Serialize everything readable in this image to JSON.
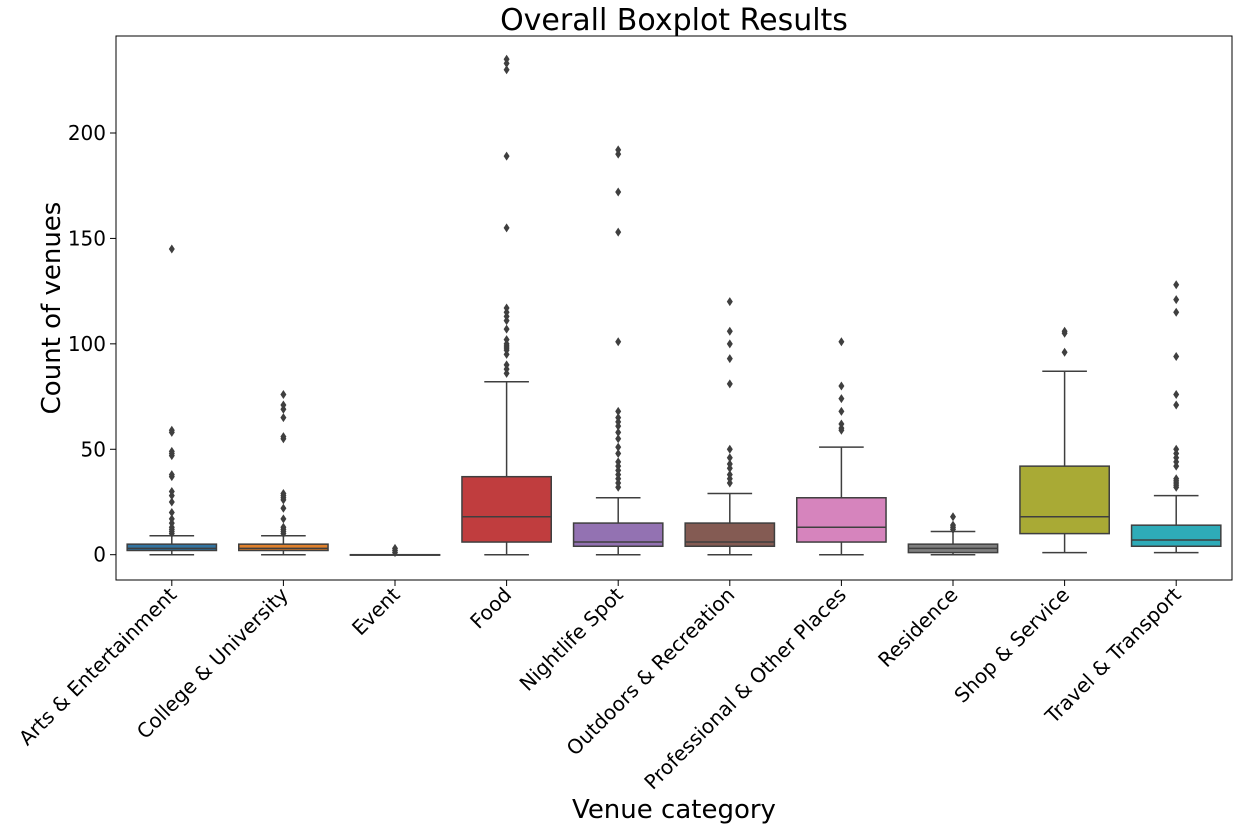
{
  "chart_data": {
    "type": "box",
    "title": "Overall Boxplot Results",
    "xlabel": "Venue category",
    "ylabel": "Count of venues",
    "ylim": [
      -12,
      246
    ],
    "yticks": [
      0,
      50,
      100,
      150,
      200
    ],
    "grid": false,
    "legend": "none",
    "categories": [
      "Arts & Entertainment",
      "College & University",
      "Event",
      "Food",
      "Nightlife Spot",
      "Outdoors & Recreation",
      "Professional & Other Places",
      "Residence",
      "Shop & Service",
      "Travel & Transport"
    ],
    "boxes": [
      {
        "category": "Arts & Entertainment",
        "color": "#3274a1",
        "whisker_low": 0,
        "q1": 2,
        "median": 3,
        "q3": 5,
        "whisker_high": 9,
        "outliers": [
          10,
          11,
          12,
          13,
          15,
          17,
          20,
          25,
          28,
          30,
          37,
          38,
          47,
          48,
          49,
          58,
          59,
          145
        ]
      },
      {
        "category": "College & University",
        "color": "#e1812c",
        "whisker_low": 0,
        "q1": 2,
        "median": 3,
        "q3": 5,
        "whisker_high": 9,
        "outliers": [
          10,
          11,
          12,
          13,
          17,
          22,
          26,
          27,
          28,
          29,
          55,
          56,
          65,
          69,
          71,
          76
        ]
      },
      {
        "category": "Event",
        "color": "#3a923a",
        "whisker_low": 0,
        "q1": 0,
        "median": 0,
        "q3": 0,
        "whisker_high": 0,
        "outliers": [
          1,
          2,
          3
        ]
      },
      {
        "category": "Food",
        "color": "#c03d3e",
        "whisker_low": 0,
        "q1": 6,
        "median": 18,
        "q3": 37,
        "whisker_high": 82,
        "outliers": [
          86,
          88,
          90,
          95,
          97,
          98,
          99,
          100,
          102,
          107,
          111,
          113,
          115,
          117,
          155,
          189,
          230,
          233,
          235
        ]
      },
      {
        "category": "Nightlife Spot",
        "color": "#9372b2",
        "whisker_low": 0,
        "q1": 4,
        "median": 6,
        "q3": 15,
        "whisker_high": 27,
        "outliers": [
          32,
          34,
          36,
          38,
          40,
          42,
          44,
          48,
          51,
          55,
          58,
          61,
          63,
          65,
          68,
          101,
          153,
          172,
          190,
          192
        ]
      },
      {
        "category": "Outdoors & Recreation",
        "color": "#845b53",
        "whisker_low": 0,
        "q1": 4,
        "median": 6,
        "q3": 15,
        "whisker_high": 29,
        "outliers": [
          34,
          36,
          38,
          41,
          43,
          46,
          50,
          81,
          93,
          100,
          106,
          120
        ]
      },
      {
        "category": "Professional & Other Places",
        "color": "#d684bd",
        "whisker_low": 0,
        "q1": 6,
        "median": 13,
        "q3": 27,
        "whisker_high": 51,
        "outliers": [
          59,
          60,
          62,
          68,
          74,
          80,
          101
        ]
      },
      {
        "category": "Residence",
        "color": "#7f7f7f",
        "whisker_low": 0,
        "q1": 1,
        "median": 3,
        "q3": 5,
        "whisker_high": 11,
        "outliers": [
          12,
          13,
          14,
          18
        ]
      },
      {
        "category": "Shop & Service",
        "color": "#a9aa35",
        "whisker_low": 1,
        "q1": 10,
        "median": 18,
        "q3": 42,
        "whisker_high": 87,
        "outliers": [
          96,
          105,
          106
        ]
      },
      {
        "category": "Travel & Transport",
        "color": "#2eabb8",
        "whisker_low": 1,
        "q1": 4,
        "median": 7,
        "q3": 14,
        "whisker_high": 28,
        "outliers": [
          32,
          33,
          34,
          35,
          36,
          42,
          44,
          46,
          48,
          50,
          71,
          76,
          94,
          115,
          121,
          128
        ]
      }
    ]
  }
}
